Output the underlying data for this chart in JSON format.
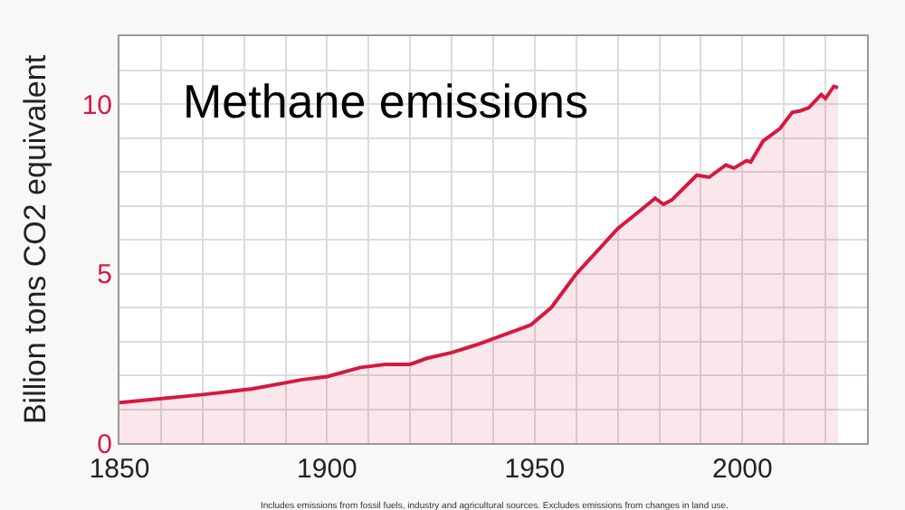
{
  "chart_data": {
    "type": "area",
    "title": "Methane emissions",
    "ylabel": "Billion tons CO2 equivalent",
    "annotations": [
      "Includes emissions from fossil fuels, industry and agricultural sources. Excludes emissions from changes in land use."
    ],
    "x": [
      1850,
      1870,
      1882,
      1894,
      1900,
      1908,
      1914,
      1920,
      1924,
      1930,
      1936,
      1944,
      1949,
      1954,
      1960,
      1966,
      1970,
      1974,
      1979,
      1981,
      1983,
      1989,
      1992,
      1996,
      1998,
      2001,
      2002,
      2005,
      2009,
      2012,
      2014,
      2016,
      2019,
      2020,
      2022,
      2023
    ],
    "series": [
      {
        "color": "#d6183f",
        "values": [
          1.19,
          1.43,
          1.6,
          1.87,
          1.96,
          2.23,
          2.32,
          2.32,
          2.5,
          2.67,
          2.9,
          3.26,
          3.48,
          4.0,
          4.99,
          5.79,
          6.33,
          6.72,
          7.22,
          7.04,
          7.17,
          7.9,
          7.84,
          8.2,
          8.11,
          8.33,
          8.29,
          8.91,
          9.27,
          9.75,
          9.8,
          9.89,
          10.28,
          10.16,
          10.52,
          10.48
        ]
      }
    ],
    "xlim": [
      1850,
      2030
    ],
    "ylim": [
      0,
      12
    ],
    "xticks": [
      1850,
      {
        "value": 1860,
        "label": null
      },
      {
        "value": 1870,
        "label": null
      },
      {
        "value": 1880,
        "label": null
      },
      {
        "value": 1890,
        "label": null
      },
      1900,
      {
        "value": 1910,
        "label": null
      },
      {
        "value": 1920,
        "label": null
      },
      {
        "value": 1930,
        "label": null
      },
      {
        "value": 1940,
        "label": null
      },
      1950,
      {
        "value": 1960,
        "label": null
      },
      {
        "value": 1970,
        "label": null
      },
      {
        "value": 1980,
        "label": null
      },
      {
        "value": 1990,
        "label": null
      },
      2000,
      {
        "value": 2010,
        "label": null
      },
      {
        "value": 2020,
        "label": null
      },
      {
        "value": 2030,
        "label": null
      }
    ],
    "yticks": [
      0,
      {
        "value": 1,
        "label": null
      },
      {
        "value": 2,
        "label": null
      },
      {
        "value": 3,
        "label": null
      },
      {
        "value": 4,
        "label": null
      },
      5,
      {
        "value": 6,
        "label": null
      },
      {
        "value": 7,
        "label": null
      },
      {
        "value": 8,
        "label": null
      },
      {
        "value": 9,
        "label": null
      },
      10,
      {
        "value": 11,
        "label": null
      },
      {
        "value": 12,
        "label": null
      }
    ],
    "grid": true,
    "legend": false
  }
}
